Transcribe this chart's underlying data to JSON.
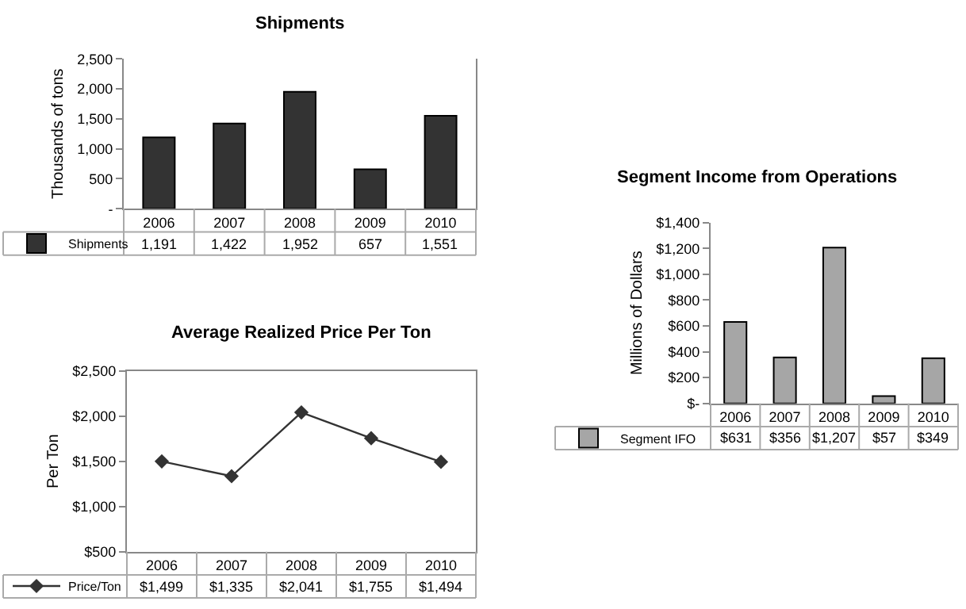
{
  "chart_data": [
    {
      "type": "bar",
      "title": "Shipments",
      "ylabel": "Thousands of tons",
      "categories": [
        "2006",
        "2007",
        "2008",
        "2009",
        "2010"
      ],
      "series": [
        {
          "name": "Shipments",
          "color": "#333333",
          "values": [
            1191,
            1422,
            1952,
            657,
            1551
          ],
          "value_labels": [
            "1,191",
            "1,422",
            "1,952",
            "657",
            "1,551"
          ]
        }
      ],
      "ylim": [
        0,
        2500
      ],
      "yticks": [
        {
          "value": 0,
          "label": "-"
        },
        {
          "value": 500,
          "label": "500"
        },
        {
          "value": 1000,
          "label": "1,000"
        },
        {
          "value": 1500,
          "label": "1,500"
        },
        {
          "value": 2000,
          "label": "2,000"
        },
        {
          "value": 2500,
          "label": "2,500"
        }
      ],
      "data_labels": false,
      "legend": "bottom left"
    },
    {
      "type": "line",
      "title": "Average Realized Price Per Ton",
      "ylabel": "Per Ton",
      "categories": [
        "2006",
        "2007",
        "2008",
        "2009",
        "2010"
      ],
      "series": [
        {
          "name": "Price/Ton",
          "color": "#333333",
          "values": [
            1499,
            1335,
            2041,
            1755,
            1494
          ],
          "value_labels": [
            "$1,499",
            "$1,335",
            "$2,041",
            "$1,755",
            "$1,494"
          ]
        }
      ],
      "ylim": [
        500,
        2500
      ],
      "yticks": [
        {
          "value": 500,
          "label": "$500"
        },
        {
          "value": 1000,
          "label": "$1,000"
        },
        {
          "value": 1500,
          "label": "$1,500"
        },
        {
          "value": 2000,
          "label": "$2,000"
        },
        {
          "value": 2500,
          "label": "$2,500"
        }
      ],
      "marker": "diamond",
      "line_style": "solid",
      "legend": "bottom left"
    },
    {
      "type": "bar",
      "title": "Segment Income from Operations",
      "ylabel": "Millions of Dollars",
      "categories": [
        "2006",
        "2007",
        "2008",
        "2009",
        "2010"
      ],
      "series": [
        {
          "name": "Segment IFO",
          "color": "#a6a6a6",
          "values": [
            631,
            356,
            1207,
            57,
            349
          ],
          "value_labels": [
            "$631",
            "$356",
            "$1,207",
            "$57",
            "$349"
          ]
        }
      ],
      "ylim": [
        0,
        1400
      ],
      "yticks": [
        {
          "value": 0,
          "label": "$-"
        },
        {
          "value": 200,
          "label": "$200"
        },
        {
          "value": 400,
          "label": "$400"
        },
        {
          "value": 600,
          "label": "$600"
        },
        {
          "value": 800,
          "label": "$800"
        },
        {
          "value": 1000,
          "label": "$1,000"
        },
        {
          "value": 1200,
          "label": "$1,200"
        },
        {
          "value": 1400,
          "label": "$1,400"
        }
      ],
      "legend": "bottom left"
    }
  ]
}
